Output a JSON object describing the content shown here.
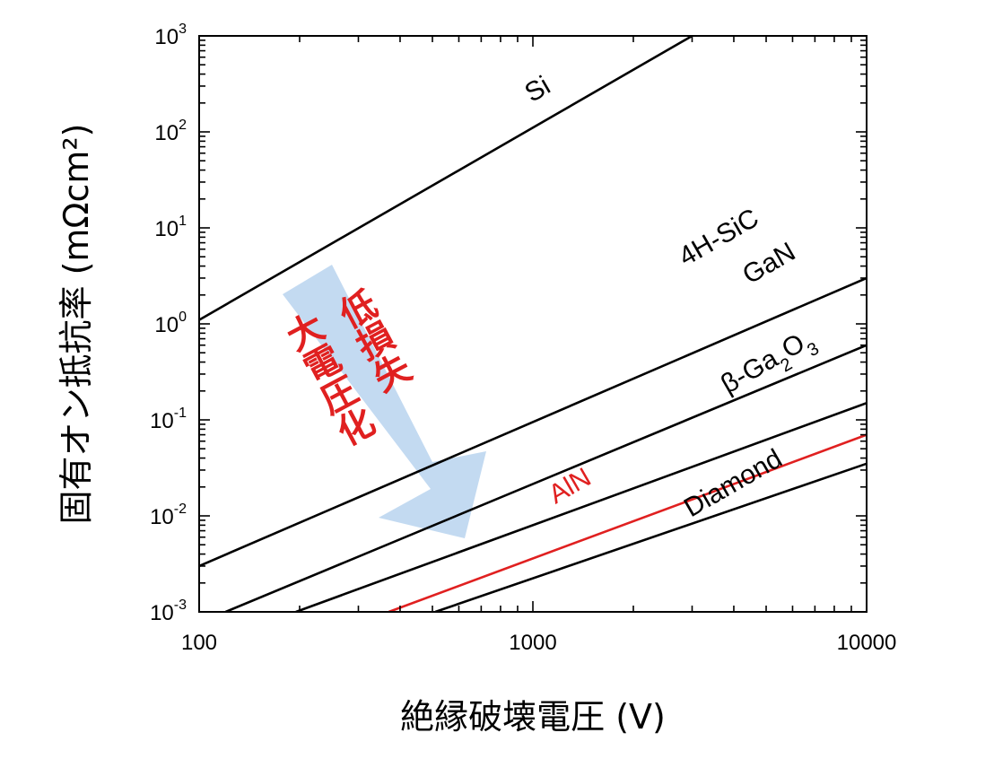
{
  "chart_data": {
    "type": "line",
    "x_scale": "log",
    "y_scale": "log",
    "xlabel": "絶縁破壊電圧 (V)",
    "ylabel": "固有オン抵抗率 (mΩcm²)",
    "xlim": [
      100,
      10000
    ],
    "ylim": [
      0.001,
      1000
    ],
    "x_ticks": [
      "100",
      "1000",
      "10000"
    ],
    "y_ticks": [
      {
        "base": "10",
        "exp": "3"
      },
      {
        "base": "10",
        "exp": "2"
      },
      {
        "base": "10",
        "exp": "1"
      },
      {
        "base": "10",
        "exp": "0"
      },
      {
        "base": "10",
        "exp": "-1"
      },
      {
        "base": "10",
        "exp": "-2"
      },
      {
        "base": "10",
        "exp": "-3"
      }
    ],
    "grid": false,
    "series": [
      {
        "name": "Si",
        "color": "#000000",
        "x": [
          100,
          3000
        ],
        "y": [
          1.1,
          1000
        ]
      },
      {
        "name": "4H-SiC",
        "color": "#000000",
        "x": [
          100,
          10000
        ],
        "y": [
          0.003,
          3.0
        ]
      },
      {
        "name": "GaN",
        "color": "#000000",
        "x": [
          120,
          10000
        ],
        "y": [
          0.001,
          0.6
        ]
      },
      {
        "name": "β-Ga2O3",
        "color": "#000000",
        "x": [
          195,
          10000
        ],
        "y": [
          0.001,
          0.15
        ]
      },
      {
        "name": "AlN",
        "color": "#e02020",
        "x": [
          370,
          10000
        ],
        "y": [
          0.001,
          0.07
        ]
      },
      {
        "name": "Diamond",
        "color": "#000000",
        "x": [
          510,
          10000
        ],
        "y": [
          0.001,
          0.035
        ]
      }
    ],
    "annotation": {
      "lines": [
        "低損失",
        "大電圧化"
      ],
      "text_color": "#e02020",
      "arrow_color": "#b8d3ee"
    }
  }
}
